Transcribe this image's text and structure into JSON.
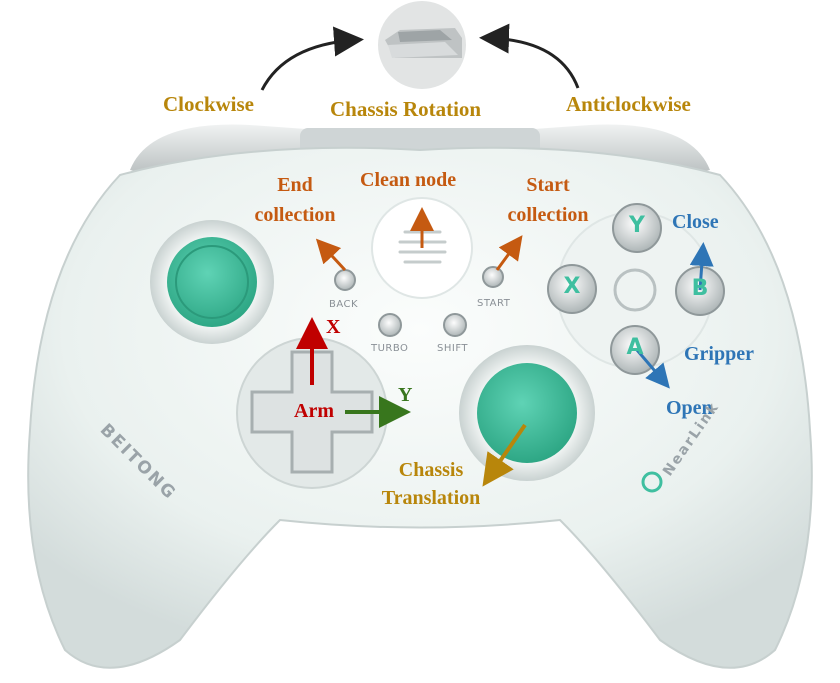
{
  "rotation": {
    "title": "Chassis Rotation",
    "left": "Clockwise",
    "right": "Anticlockwise"
  },
  "labels": {
    "end_collection": [
      "End",
      "collection"
    ],
    "clean_node": "Clean node",
    "start_collection": [
      "Start",
      "collection"
    ],
    "close": "Close",
    "gripper": "Gripper",
    "open": "Open",
    "arm": "Arm",
    "x_axis": "X",
    "y_axis": "Y",
    "chassis_translation": [
      "Chassis",
      "Translation"
    ]
  },
  "controller": {
    "buttons": {
      "back": "BACK",
      "start": "START",
      "turbo": "TURBO",
      "shift": "SHIFT"
    },
    "face_buttons": {
      "y": "Y",
      "x": "X",
      "b": "B",
      "a": "A"
    },
    "brand_left": "BEITONG",
    "brand_right": "NearLink"
  },
  "colors": {
    "gold": "#b8860b",
    "orange": "#c55a11",
    "blue": "#2e75b6",
    "red": "#c00000",
    "green": "#38761d",
    "body": "#eef3f2",
    "accent_teal": "#3fbfa0"
  }
}
